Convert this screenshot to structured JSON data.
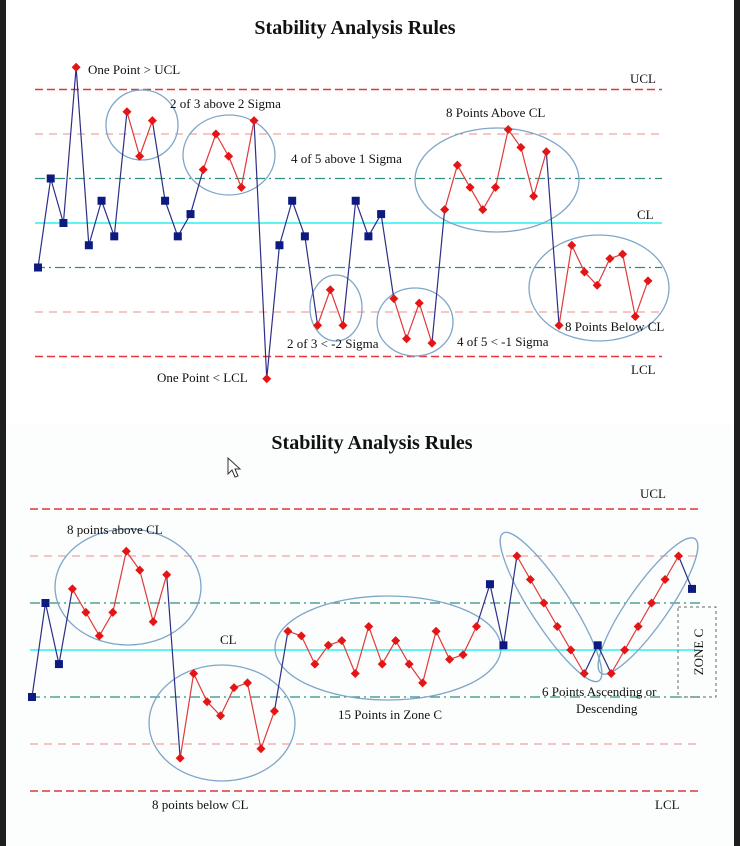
{
  "colors": {
    "in_control_point": "#0d1a80",
    "in_control_line": "#2c2f86",
    "out_point": "#e41515",
    "out_line": "#e03a3a",
    "cl": "#5ff5f5",
    "sigma1": "#2f8f80",
    "sigma2": "#f08b8b",
    "limit": "#e0383a",
    "ellipse": "#7fa6c8"
  },
  "chart_data": [
    {
      "type": "line",
      "title": "Stability Analysis Rules",
      "units": "sigma from center line",
      "ylim": [
        -3.6,
        3.6
      ],
      "reference_lines": {
        "UCL": 3,
        "plus_2_sigma": 2,
        "plus_1_sigma": 1,
        "CL": 0,
        "minus_1_sigma": -1,
        "minus_2_sigma": -2,
        "LCL": -3
      },
      "line_labels": {
        "ucl": "UCL",
        "cl": "CL",
        "lcl": "LCL"
      },
      "values": [
        -1.0,
        1.0,
        0.0,
        3.5,
        -0.5,
        0.5,
        -0.3,
        2.5,
        1.5,
        2.3,
        0.5,
        -0.3,
        0.2,
        1.2,
        2.0,
        1.5,
        0.8,
        2.3,
        -3.5,
        -0.5,
        0.5,
        -0.3,
        -2.3,
        -1.5,
        -2.3,
        0.5,
        -0.3,
        0.2,
        -1.7,
        -2.6,
        -1.8,
        -2.7,
        0.3,
        1.3,
        0.8,
        0.3,
        0.8,
        2.1,
        1.7,
        0.6,
        1.6,
        -2.3,
        -0.5,
        -1.1,
        -1.4,
        -0.8,
        -0.7,
        -2.1,
        -1.3
      ],
      "rule_group": [
        0,
        0,
        0,
        1,
        0,
        0,
        0,
        2,
        2,
        2,
        0,
        0,
        0,
        3,
        3,
        3,
        3,
        3,
        4,
        0,
        0,
        0,
        5,
        5,
        5,
        0,
        0,
        0,
        6,
        6,
        6,
        6,
        7,
        7,
        7,
        7,
        7,
        7,
        7,
        7,
        7,
        8,
        8,
        8,
        8,
        8,
        8,
        8,
        8
      ],
      "annotations": [
        "One Point > UCL",
        "2 of 3 above 2 Sigma",
        "4 of 5 above 1 Sigma",
        "8 Points Above CL",
        "2 of 3 < -2 Sigma",
        "4 of 5 < -1 Sigma",
        "8 Points Below CL",
        "One Point < LCL"
      ]
    },
    {
      "type": "line",
      "title": "Stability Analysis Rules",
      "units": "sigma from center line",
      "ylim": [
        -3.3,
        3.3
      ],
      "reference_lines": {
        "UCL": 3,
        "plus_2_sigma": 2,
        "plus_1_sigma": 1,
        "CL": 0,
        "minus_1_sigma": -1,
        "minus_2_sigma": -2,
        "LCL": -3
      },
      "line_labels": {
        "ucl": "UCL",
        "cl": "CL",
        "lcl": "LCL"
      },
      "values": [
        -1.0,
        1.0,
        -0.3,
        1.3,
        0.8,
        0.3,
        0.8,
        2.1,
        1.7,
        0.6,
        1.6,
        -2.3,
        -0.5,
        -1.1,
        -1.4,
        -0.8,
        -0.7,
        -2.1,
        -1.3,
        0.4,
        0.3,
        -0.3,
        0.1,
        0.2,
        -0.5,
        0.5,
        -0.3,
        0.2,
        -0.3,
        -0.7,
        0.4,
        -0.2,
        -0.1,
        0.5,
        1.4,
        0.1,
        2.0,
        1.5,
        1.0,
        0.5,
        0.0,
        -0.5,
        0.1,
        -0.5,
        0.0,
        0.5,
        1.0,
        1.5,
        2.0,
        1.3
      ],
      "rule_group": [
        0,
        0,
        0,
        1,
        1,
        1,
        1,
        1,
        1,
        1,
        1,
        2,
        2,
        2,
        2,
        2,
        2,
        2,
        2,
        3,
        3,
        3,
        3,
        3,
        3,
        3,
        3,
        3,
        3,
        3,
        3,
        3,
        3,
        3,
        0,
        0,
        4,
        4,
        4,
        4,
        4,
        4,
        0,
        5,
        5,
        5,
        5,
        5,
        5,
        0
      ],
      "annotations": [
        "8 points above CL",
        "8 points below CL",
        "15 Points in Zone C",
        "6 Points Ascending or",
        "Descending",
        "ZONE C"
      ]
    }
  ]
}
